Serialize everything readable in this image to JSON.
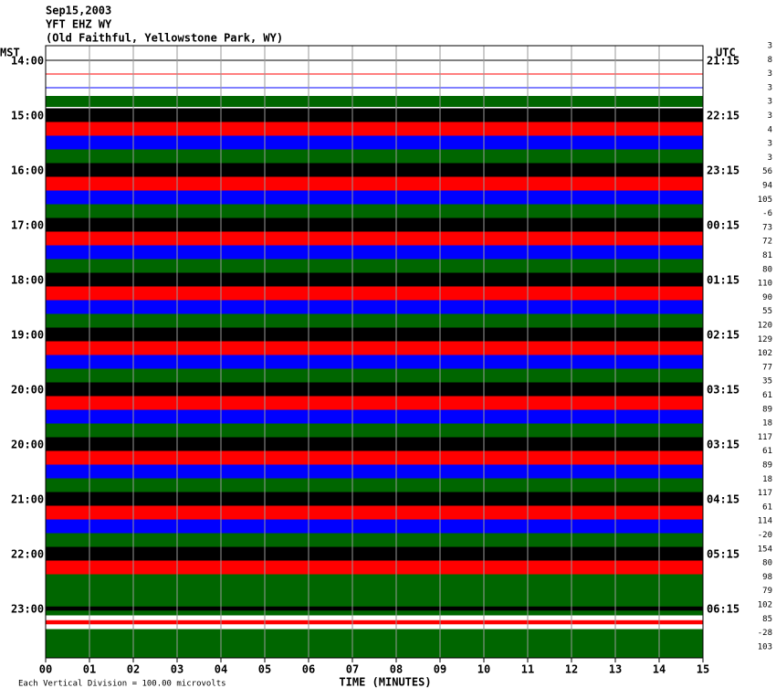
{
  "chart_data": {
    "type": "helicorder",
    "title": "Sep15,2003",
    "subtitle": "YFT EHZ WY",
    "location": "(Old Faithful, Yellowstone Park, WY)",
    "left_axis_label": "MST",
    "right_axis_label": "UTC",
    "left_labels": [
      "14:00",
      "15:00",
      "16:00",
      "17:00",
      "18:00",
      "19:00",
      "20:00",
      "20:00",
      "21:00",
      "22:00",
      "23:00"
    ],
    "right_labels": [
      "21:15",
      "22:15",
      "23:15",
      "00:15",
      "01:15",
      "02:15",
      "03:15",
      "03:15",
      "04:15",
      "05:15",
      "06:15"
    ],
    "row_values": [
      3,
      8,
      3,
      3,
      3,
      3,
      4,
      3,
      3,
      56,
      94,
      105,
      -6,
      73,
      72,
      81,
      80,
      110,
      90,
      55,
      120,
      129,
      102,
      77,
      35,
      61,
      89,
      18,
      117,
      61,
      89,
      18,
      117,
      61,
      114,
      -20,
      154,
      80,
      98,
      79,
      102,
      85,
      -28,
      103
    ],
    "trace_colors": [
      "#000000",
      "#ff0000",
      "#0000ff",
      "#006600"
    ],
    "amplitudes": [
      0,
      0,
      0,
      0.8,
      1,
      1,
      1,
      1,
      1,
      1,
      1,
      1,
      1,
      1,
      1,
      1,
      1,
      1,
      1,
      1,
      1,
      1,
      1,
      1,
      1,
      1,
      1,
      1,
      1,
      1,
      1,
      1,
      1,
      1,
      1,
      1,
      1,
      1,
      1,
      3,
      0.3,
      0.3,
      0.5,
      3
    ],
    "x_label": "TIME (MINUTES)",
    "note": "Each Vertical Division = 100.00 microvolts",
    "xlim": [
      0,
      15
    ],
    "xticks": [
      {
        "value": 0,
        "label": "00"
      },
      {
        "value": 1,
        "label": "01"
      },
      {
        "value": 2,
        "label": "02"
      },
      {
        "value": 3,
        "label": "03"
      },
      {
        "value": 4,
        "label": "04"
      },
      {
        "value": 5,
        "label": "05"
      },
      {
        "value": 6,
        "label": "06"
      },
      {
        "value": 7,
        "label": "07"
      },
      {
        "value": 8,
        "label": "08"
      },
      {
        "value": 9,
        "label": "09"
      },
      {
        "value": 10,
        "label": "10"
      },
      {
        "value": 11,
        "label": "11"
      },
      {
        "value": 12,
        "label": "12"
      },
      {
        "value": 13,
        "label": "13"
      },
      {
        "value": 14,
        "label": "14"
      },
      {
        "value": 15,
        "label": "15"
      }
    ],
    "grid": true
  }
}
